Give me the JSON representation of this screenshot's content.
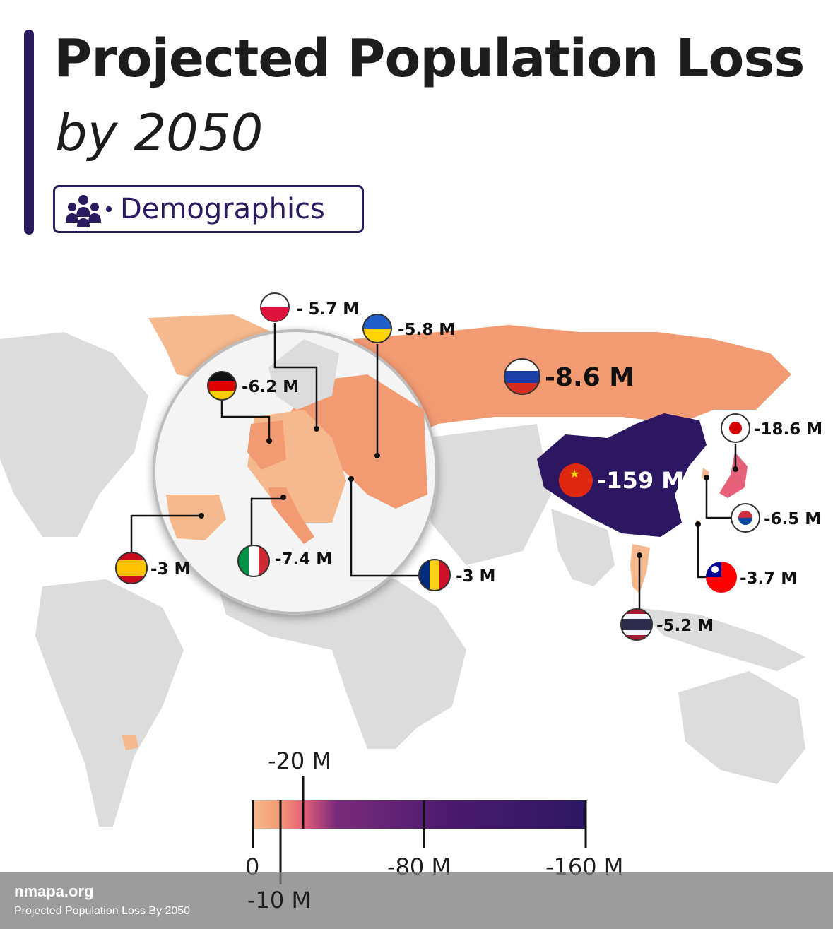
{
  "header": {
    "title": "Projected Population Loss",
    "subtitle": "by 2050",
    "tag_label": "Demographics",
    "tag_icon": "people-group-icon"
  },
  "colors": {
    "accent": "#2a1a5e",
    "land": "#dcdcdc",
    "loss_light": "#f6b98e",
    "loss_mid": "#f29a72",
    "loss_japan": "#e6607a",
    "loss_china": "#2d1763"
  },
  "countries": [
    {
      "name": "Poland",
      "flag": "poland-flag-icon",
      "value_label": "- 5.7 M"
    },
    {
      "name": "Ukraine",
      "flag": "ukraine-flag-icon",
      "value_label": "-5.8 M"
    },
    {
      "name": "Germany",
      "flag": "germany-flag-icon",
      "value_label": "-6.2 M"
    },
    {
      "name": "Russia",
      "flag": "russia-flag-icon",
      "value_label": "-8.6 M"
    },
    {
      "name": "Japan",
      "flag": "japan-flag-icon",
      "value_label": "-18.6 M"
    },
    {
      "name": "China",
      "flag": "china-flag-icon",
      "value_label": "-159 M"
    },
    {
      "name": "South Korea",
      "flag": "south-korea-flag-icon",
      "value_label": "-6.5 M"
    },
    {
      "name": "Spain",
      "flag": "spain-flag-icon",
      "value_label": "-3 M"
    },
    {
      "name": "Italy",
      "flag": "italy-flag-icon",
      "value_label": "-7.4 M"
    },
    {
      "name": "Romania",
      "flag": "romania-flag-icon",
      "value_label": "-3 M"
    },
    {
      "name": "Taiwan",
      "flag": "taiwan-flag-icon",
      "value_label": "-3.7 M"
    },
    {
      "name": "Thailand",
      "flag": "thailand-flag-icon",
      "value_label": "-5.2 M"
    }
  ],
  "legend": {
    "ticks_above": [
      "-20 M"
    ],
    "ticks_below": [
      "0",
      "-80 M",
      "-160 M"
    ],
    "ticks_lower": [
      "-10 M"
    ]
  },
  "footer": {
    "site": "nmapa.org",
    "caption": "Projected Population Loss By 2050"
  }
}
